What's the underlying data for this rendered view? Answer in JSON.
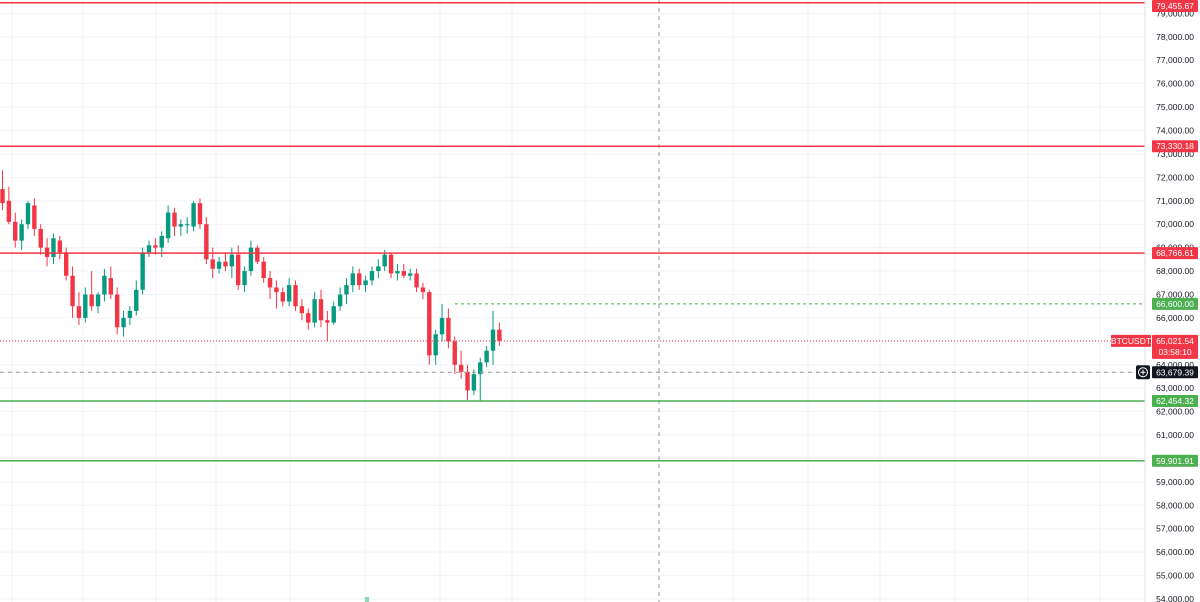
{
  "chart_data": {
    "type": "candlestick",
    "symbol": "BTCUSDT",
    "ylim": [
      54000,
      79700
    ],
    "y_ticks": [
      "79,000.00",
      "78,000.00",
      "77,000.00",
      "76,000.00",
      "75,000.00",
      "74,000.00",
      "73,000.00",
      "72,000.00",
      "71,000.00",
      "70,000.00",
      "69,000.00",
      "68,000.00",
      "67,000.00",
      "66,000.00",
      "65,000.00",
      "64,000.00",
      "63,000.00",
      "62,000.00",
      "61,000.00",
      "60,000.00",
      "59,000.00",
      "58,000.00",
      "57,000.00",
      "56,000.00",
      "55,000.00",
      "54,000.00"
    ],
    "colors": {
      "up": "#089981",
      "down": "#f23645",
      "resistance": "#f23645",
      "support": "#4caf50",
      "crosshair": "#9598a1"
    },
    "horizontal_levels": [
      {
        "value": 79455.67,
        "label": "79,455.67",
        "color": "#f23645",
        "style": "solid"
      },
      {
        "value": 73330.18,
        "label": "73,330.18",
        "color": "#f23645",
        "style": "solid"
      },
      {
        "value": 68766.61,
        "label": "68,766.61",
        "color": "#f23645",
        "style": "solid"
      },
      {
        "value": 66600.0,
        "label": "66,600.00",
        "color": "#4caf50",
        "style": "dashed"
      },
      {
        "value": 62454.32,
        "label": "62,454.32",
        "color": "#4caf50",
        "style": "solid"
      },
      {
        "value": 59901.91,
        "label": "59,901.91",
        "color": "#4caf50",
        "style": "solid"
      }
    ],
    "last_price": {
      "value": 65021.54,
      "label": "65,021.54",
      "countdown": "03:58:10",
      "symbol_tag": "BTCUSDT"
    },
    "crosshair": {
      "value": 63679.39,
      "label": "63,679.39"
    },
    "candles": [
      [
        71500,
        72300,
        70600,
        70900
      ],
      [
        71000,
        71600,
        70000,
        70100
      ],
      [
        70100,
        70500,
        69000,
        69300
      ],
      [
        69300,
        70200,
        68900,
        70000
      ],
      [
        70000,
        71000,
        69800,
        70900
      ],
      [
        70800,
        71100,
        69500,
        69800
      ],
      [
        69800,
        70000,
        68700,
        69000
      ],
      [
        69000,
        69400,
        68200,
        68600
      ],
      [
        68600,
        69600,
        68300,
        69400
      ],
      [
        69300,
        69500,
        68500,
        68800
      ],
      [
        68800,
        69000,
        67600,
        67800
      ],
      [
        67800,
        68200,
        66000,
        66500
      ],
      [
        66500,
        67100,
        65700,
        66000
      ],
      [
        66000,
        67300,
        65800,
        67000
      ],
      [
        67000,
        68000,
        66300,
        66500
      ],
      [
        66500,
        67100,
        66200,
        67000
      ],
      [
        67000,
        68100,
        66700,
        67800
      ],
      [
        67700,
        68200,
        66800,
        67000
      ],
      [
        67000,
        67300,
        65300,
        65600
      ],
      [
        65600,
        66300,
        65200,
        66000
      ],
      [
        66000,
        66500,
        65700,
        66300
      ],
      [
        66300,
        67600,
        66100,
        67200
      ],
      [
        67200,
        69000,
        67000,
        68800
      ],
      [
        68800,
        69300,
        68600,
        69100
      ],
      [
        69100,
        69400,
        68700,
        69000
      ],
      [
        69000,
        69700,
        68600,
        69500
      ],
      [
        69400,
        70800,
        69200,
        70500
      ],
      [
        70500,
        70700,
        69500,
        69900
      ],
      [
        69900,
        70200,
        69500,
        70000
      ],
      [
        70000,
        70300,
        69600,
        70000
      ],
      [
        69900,
        71000,
        69700,
        70900
      ],
      [
        70900,
        71100,
        69800,
        70000
      ],
      [
        70000,
        70300,
        68300,
        68500
      ],
      [
        68500,
        69000,
        67700,
        68100
      ],
      [
        68100,
        68600,
        67900,
        68400
      ],
      [
        68400,
        68800,
        68000,
        68200
      ],
      [
        68200,
        69000,
        67700,
        68700
      ],
      [
        68700,
        69100,
        67200,
        67400
      ],
      [
        67400,
        68200,
        67100,
        68000
      ],
      [
        68000,
        69300,
        67800,
        69000
      ],
      [
        69000,
        69100,
        68300,
        68400
      ],
      [
        68400,
        68600,
        67500,
        67700
      ],
      [
        67700,
        68000,
        66800,
        67300
      ],
      [
        67300,
        67600,
        66400,
        67100
      ],
      [
        67100,
        67300,
        66500,
        66700
      ],
      [
        66700,
        67700,
        66500,
        67400
      ],
      [
        67400,
        67600,
        66300,
        66500
      ],
      [
        66500,
        66800,
        65900,
        66200
      ],
      [
        66200,
        66400,
        65500,
        65800
      ],
      [
        65800,
        67100,
        65600,
        66800
      ],
      [
        66800,
        67200,
        65600,
        65900
      ],
      [
        65900,
        66300,
        65000,
        65800
      ],
      [
        65800,
        66700,
        65700,
        66500
      ],
      [
        66500,
        67300,
        66300,
        67000
      ],
      [
        67000,
        67700,
        66600,
        67400
      ],
      [
        67400,
        68200,
        67100,
        67900
      ],
      [
        67900,
        68100,
        67200,
        67400
      ],
      [
        67400,
        67800,
        67100,
        67600
      ],
      [
        67600,
        68200,
        67400,
        68000
      ],
      [
        68000,
        68500,
        67700,
        68200
      ],
      [
        68200,
        68900,
        68000,
        68700
      ],
      [
        68700,
        68800,
        67700,
        67900
      ],
      [
        67900,
        68300,
        67600,
        68000
      ],
      [
        68000,
        68300,
        67700,
        67800
      ],
      [
        67800,
        68100,
        67600,
        67900
      ],
      [
        67900,
        68100,
        67100,
        67300
      ],
      [
        67300,
        67500,
        66800,
        67100
      ],
      [
        67100,
        67200,
        64000,
        64400
      ],
      [
        64400,
        65500,
        64000,
        65300
      ],
      [
        65300,
        66600,
        65000,
        66000
      ],
      [
        66000,
        66400,
        64700,
        65000
      ],
      [
        65000,
        65200,
        63600,
        64000
      ],
      [
        64000,
        64600,
        63400,
        63700
      ],
      [
        63700,
        64000,
        62500,
        62900
      ],
      [
        62900,
        63800,
        62700,
        63600
      ],
      [
        63600,
        64300,
        62450,
        64100
      ],
      [
        64100,
        64800,
        63900,
        64600
      ],
      [
        64600,
        66300,
        64000,
        65500
      ],
      [
        65500,
        65800,
        64800,
        65021.54
      ]
    ]
  }
}
